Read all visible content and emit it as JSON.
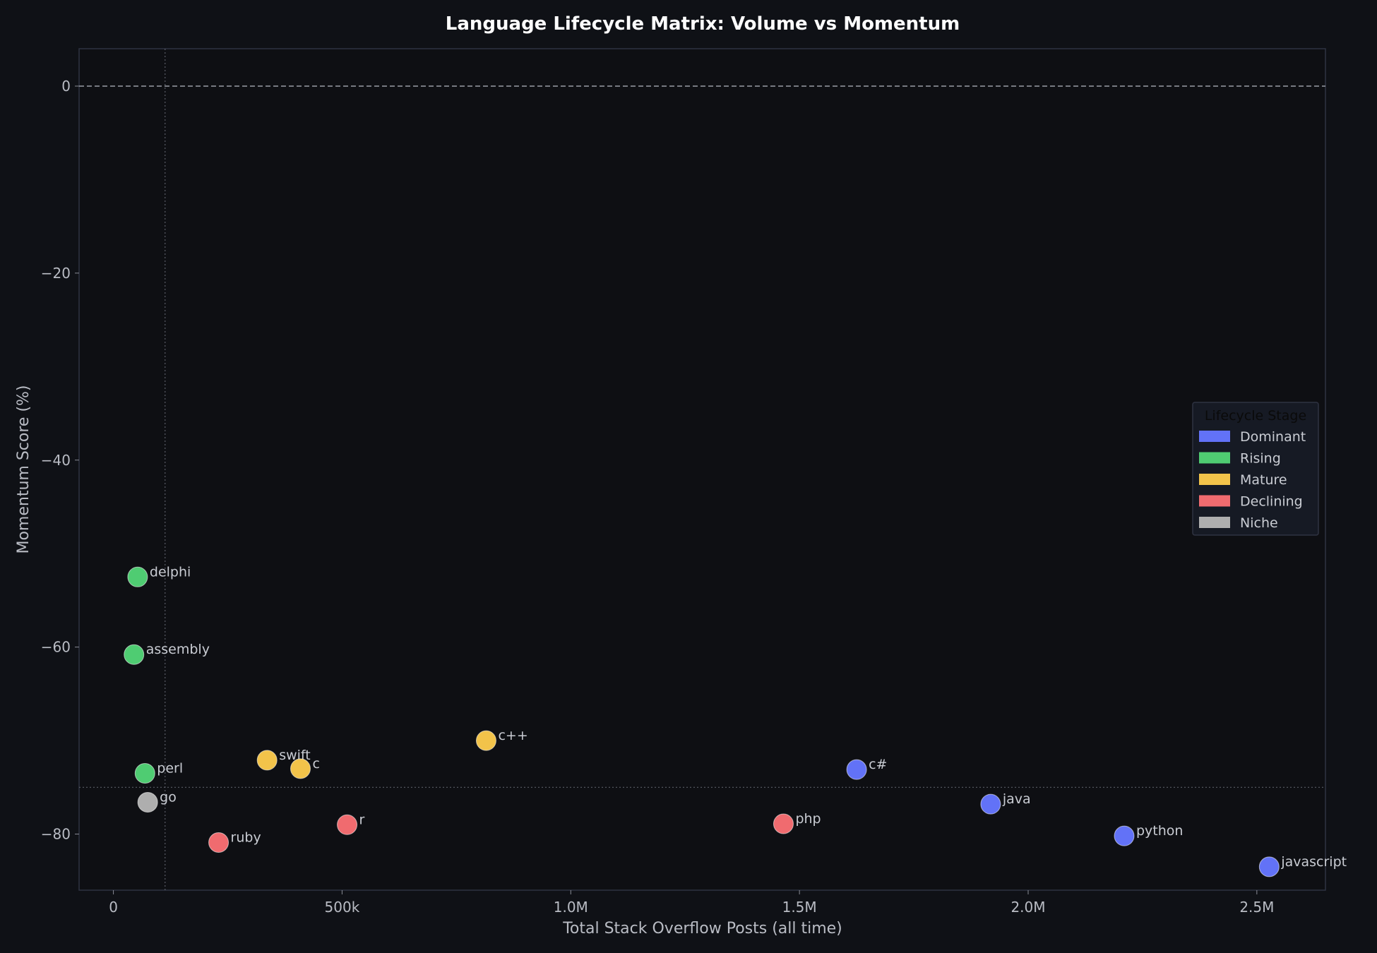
{
  "chart_data": {
    "type": "scatter",
    "title": "Language Lifecycle Matrix: Volume vs Momentum",
    "xlabel": "Total Stack Overflow Posts (all time)",
    "ylabel": "Momentum Score (%)",
    "xlim": [
      -75000,
      2650000
    ],
    "ylim": [
      -86,
      4
    ],
    "x_ticks": [
      {
        "value": 0,
        "label": "0"
      },
      {
        "value": 500000,
        "label": "500k"
      },
      {
        "value": 1000000,
        "label": "1.0M"
      },
      {
        "value": 1500000,
        "label": "1.5M"
      },
      {
        "value": 2000000,
        "label": "2.0M"
      },
      {
        "value": 2500000,
        "label": "2.5M"
      }
    ],
    "y_ticks": [
      {
        "value": 0,
        "label": "0"
      },
      {
        "value": -20,
        "label": "−20"
      },
      {
        "value": -40,
        "label": "−40"
      },
      {
        "value": -60,
        "label": "−60"
      },
      {
        "value": -80,
        "label": "−80"
      }
    ],
    "reference_lines": {
      "horizontal_dashed": 0,
      "vertical_dotted": 113000,
      "horizontal_dotted": -75
    },
    "grid": false,
    "legend": {
      "title": "Lifecycle Stage",
      "placement": "center-right",
      "entries": [
        {
          "name": "Dominant",
          "color": "#6272f7"
        },
        {
          "name": "Rising",
          "color": "#4fcc72"
        },
        {
          "name": "Mature",
          "color": "#f2c34a"
        },
        {
          "name": "Declining",
          "color": "#f06b6f"
        },
        {
          "name": "Niche",
          "color": "#aeaeae"
        }
      ]
    },
    "points": [
      {
        "label": "delphi",
        "x": 53000,
        "y": -52.5,
        "stage": "Rising"
      },
      {
        "label": "assembly",
        "x": 45000,
        "y": -60.8,
        "stage": "Rising"
      },
      {
        "label": "perl",
        "x": 69000,
        "y": -73.5,
        "stage": "Rising"
      },
      {
        "label": "go",
        "x": 75000,
        "y": -76.6,
        "stage": "Niche"
      },
      {
        "label": "swift",
        "x": 336000,
        "y": -72.1,
        "stage": "Mature"
      },
      {
        "label": "c",
        "x": 409000,
        "y": -73.0,
        "stage": "Mature"
      },
      {
        "label": "c++",
        "x": 815000,
        "y": -70.0,
        "stage": "Mature"
      },
      {
        "label": "ruby",
        "x": 230000,
        "y": -80.9,
        "stage": "Declining"
      },
      {
        "label": "r",
        "x": 511000,
        "y": -79.0,
        "stage": "Declining"
      },
      {
        "label": "php",
        "x": 1465000,
        "y": -78.9,
        "stage": "Declining"
      },
      {
        "label": "c#",
        "x": 1625000,
        "y": -73.1,
        "stage": "Dominant"
      },
      {
        "label": "java",
        "x": 1918000,
        "y": -76.8,
        "stage": "Dominant"
      },
      {
        "label": "python",
        "x": 2210000,
        "y": -80.2,
        "stage": "Dominant"
      },
      {
        "label": "javascript",
        "x": 2527000,
        "y": -83.5,
        "stage": "Dominant"
      }
    ]
  }
}
